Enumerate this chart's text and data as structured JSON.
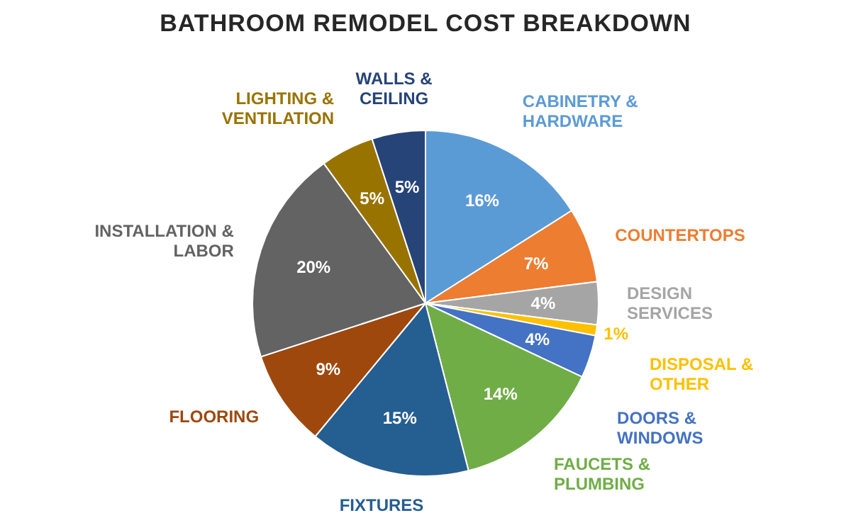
{
  "chart_data": {
    "type": "pie",
    "title": "BATHROOM REMODEL COST BREAKDOWN",
    "categories": [
      "CABINETRY & HARDWARE",
      "COUNTERTOPS",
      "DESIGN SERVICES",
      "DISPOSAL & OTHER",
      "DOORS & WINDOWS",
      "FAUCETS & PLUMBING",
      "FIXTURES",
      "FLOORING",
      "INSTALLATION & LABOR",
      "LIGHTING & VENTILATION",
      "WALLS & CEILING"
    ],
    "values": [
      16,
      7,
      4,
      1,
      4,
      14,
      15,
      9,
      20,
      5,
      5
    ],
    "value_labels": [
      "16%",
      "7%",
      "4%",
      "1%",
      "4%",
      "14%",
      "15%",
      "9%",
      "20%",
      "5%",
      "5%"
    ],
    "colors": [
      "#5b9bd5",
      "#ed7d31",
      "#a5a5a5",
      "#ffc000",
      "#4472c4",
      "#70ad47",
      "#255e91",
      "#9e480e",
      "#636363",
      "#997300",
      "#264478"
    ],
    "legend": false
  }
}
